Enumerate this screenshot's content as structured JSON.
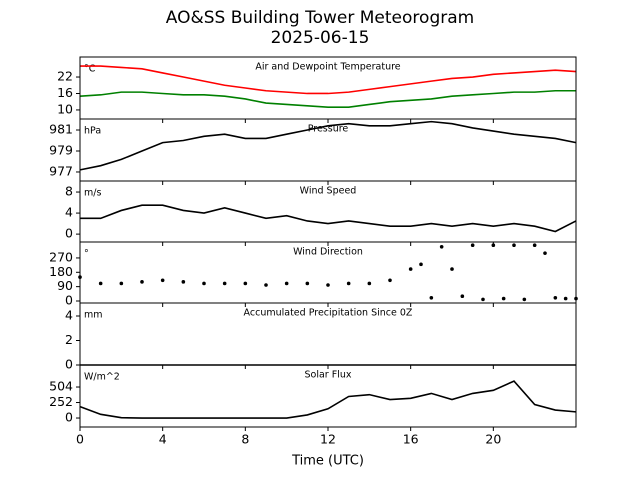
{
  "figure": {
    "title": "AO&SS Building Tower Meteorogram",
    "subtitle": "2025-06-15",
    "xlabel": "Time (UTC)",
    "xlim": [
      0,
      24
    ],
    "xticks": [
      0,
      4,
      8,
      12,
      16,
      20
    ]
  },
  "chart_data": [
    {
      "type": "line",
      "title": "Air and Dewpoint Temperature",
      "ylabel": "°C",
      "ylim": [
        6.7,
        29.3
      ],
      "yticks": [
        10,
        16,
        22
      ],
      "x": [
        0,
        1,
        2,
        3,
        4,
        5,
        6,
        7,
        8,
        9,
        10,
        11,
        12,
        13,
        14,
        15,
        16,
        17,
        18,
        19,
        20,
        21,
        22,
        23,
        24
      ],
      "series": [
        {
          "color": "#ff0000",
          "values": [
            26,
            26,
            25.5,
            25,
            23.5,
            22,
            20.5,
            19,
            18,
            17,
            16.5,
            16,
            16,
            16.5,
            17.5,
            18.5,
            19.5,
            20.5,
            21.5,
            22,
            23,
            23.5,
            24,
            24.5,
            24
          ]
        },
        {
          "color": "#008000",
          "values": [
            15,
            15.5,
            16.5,
            16.5,
            16,
            15.5,
            15.5,
            15,
            14,
            12.5,
            12,
            11.5,
            11,
            11,
            12,
            13,
            13.5,
            14,
            15,
            15.5,
            16,
            16.5,
            16.5,
            17,
            17
          ]
        }
      ]
    },
    {
      "type": "line",
      "title": "Pressure",
      "ylabel": "hPa",
      "ylim": [
        976.14,
        982.05
      ],
      "yticks": [
        977,
        979,
        981
      ],
      "x": [
        0,
        1,
        2,
        3,
        4,
        5,
        6,
        7,
        8,
        9,
        10,
        11,
        12,
        13,
        14,
        15,
        16,
        17,
        18,
        19,
        20,
        21,
        22,
        23,
        24
      ],
      "series": [
        {
          "color": "#000000",
          "values": [
            977.2,
            977.6,
            978.2,
            979.0,
            979.8,
            980.0,
            980.4,
            980.6,
            980.2,
            980.2,
            980.6,
            981.0,
            981.4,
            981.6,
            981.4,
            981.4,
            981.6,
            981.8,
            981.6,
            981.2,
            980.9,
            980.6,
            980.4,
            980.2,
            979.8
          ]
        }
      ]
    },
    {
      "type": "line",
      "title": "Wind Speed",
      "ylabel": "m/s",
      "ylim": [
        -1.5,
        10.1
      ],
      "yticks": [
        0,
        4,
        8
      ],
      "x": [
        0,
        1,
        2,
        3,
        4,
        5,
        6,
        7,
        8,
        9,
        10,
        11,
        12,
        13,
        14,
        15,
        16,
        17,
        18,
        19,
        20,
        21,
        22,
        23,
        24
      ],
      "series": [
        {
          "color": "#000000",
          "values": [
            3,
            3,
            4.5,
            5.5,
            5.5,
            4.5,
            4,
            5,
            4,
            3,
            3.5,
            2.5,
            2,
            2.5,
            2,
            1.5,
            1.5,
            2,
            1.5,
            2,
            1.5,
            2,
            1.5,
            0.5,
            2.5
          ]
        }
      ]
    },
    {
      "type": "scatter",
      "title": "Wind Direction",
      "ylabel": "°",
      "ylim": [
        -12.6,
        370
      ],
      "yticks": [
        0,
        90,
        180,
        270
      ],
      "x": [
        0,
        1,
        2,
        3,
        4,
        5,
        6,
        7,
        8,
        9,
        10,
        11,
        12,
        13,
        14,
        15,
        16,
        16.5,
        17,
        17.5,
        18,
        18.5,
        19,
        19.5,
        20,
        20.5,
        21,
        21.5,
        22,
        22.5,
        23,
        23.5,
        24
      ],
      "series": [
        {
          "color": "#000000",
          "values": [
            150,
            110,
            110,
            120,
            130,
            120,
            110,
            110,
            110,
            100,
            110,
            110,
            100,
            110,
            110,
            130,
            200,
            230,
            20,
            340,
            200,
            30,
            350,
            10,
            350,
            15,
            350,
            10,
            350,
            300,
            20,
            15,
            15
          ]
        }
      ]
    },
    {
      "type": "line",
      "title": "Accumulated Precipitation Since 0Z",
      "ylabel": "mm",
      "ylim": [
        0,
        5.06
      ],
      "yticks": [
        0,
        2,
        4
      ],
      "x": [
        0,
        24
      ],
      "series": [
        {
          "color": "#000000",
          "values": [
            0,
            0
          ]
        }
      ]
    },
    {
      "type": "line",
      "title": "Solar Flux",
      "ylabel": "W/m^2",
      "ylim": [
        -146,
        862
      ],
      "yticks": [
        0,
        252,
        504
      ],
      "x": [
        0,
        1,
        2,
        3,
        4,
        5,
        6,
        7,
        8,
        9,
        10,
        11,
        12,
        13,
        14,
        15,
        16,
        17,
        18,
        19,
        20,
        21,
        22,
        23,
        24
      ],
      "series": [
        {
          "color": "#000000",
          "values": [
            185,
            60,
            5,
            0,
            0,
            0,
            0,
            0,
            0,
            0,
            0,
            50,
            150,
            350,
            380,
            300,
            320,
            400,
            300,
            400,
            450,
            600,
            220,
            130,
            100
          ]
        }
      ]
    }
  ]
}
